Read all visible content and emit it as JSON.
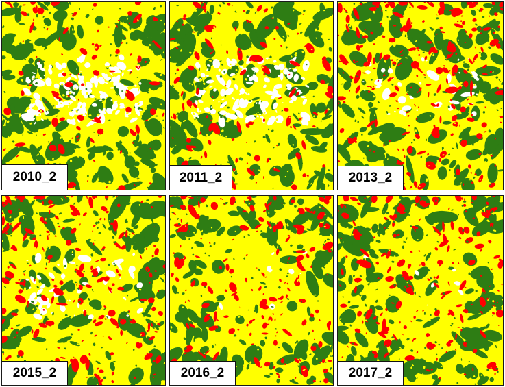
{
  "figure": {
    "colors": {
      "high": "#228B22",
      "moderate": "#FFFF00",
      "low": "#FF0000",
      "no_data": "#FFFFFF",
      "dense_vegetation": "#2E7D14"
    },
    "panels": [
      {
        "label": "2010_2"
      },
      {
        "label": "2011_2"
      },
      {
        "label": "2013_2"
      },
      {
        "label": "2015_2"
      },
      {
        "label": "2016_2"
      },
      {
        "label": "2017_2"
      }
    ]
  }
}
